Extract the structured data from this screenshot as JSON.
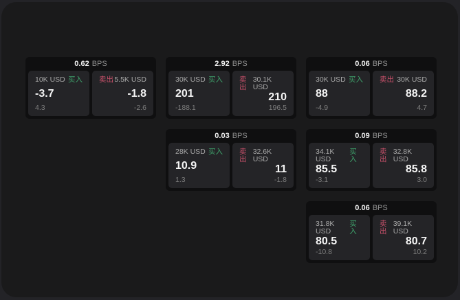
{
  "labels": {
    "buy": "买入",
    "sell": "卖出",
    "bps_unit": "BPS"
  },
  "theme": {
    "backdrop": "#232327",
    "window_bg": "#1a1a1b",
    "card_bg": "#0f0f10",
    "panel_bg": "#242427",
    "buy_green": "#3fa36c",
    "sell_red": "#c9516b",
    "value_white": "#f5f5f5",
    "label_gray": "#a9a9a9",
    "delta_gray": "#7d7d7d"
  },
  "cards": [
    {
      "bps": "0.62",
      "buy": {
        "amount": "10K USD",
        "value": "-3.7",
        "delta": "4.3"
      },
      "sell": {
        "amount": "5.5K USD",
        "value": "-1.8",
        "delta": "-2.6"
      }
    },
    {
      "bps": "2.92",
      "buy": {
        "amount": "30K USD",
        "value": "201",
        "delta": "-188.1"
      },
      "sell": {
        "amount": "30.1K USD",
        "value": "210",
        "delta": "196.5"
      }
    },
    {
      "bps": "0.06",
      "buy": {
        "amount": "30K USD",
        "value": "88",
        "delta": "-4.9"
      },
      "sell": {
        "amount": "30K USD",
        "value": "88.2",
        "delta": "4.7"
      }
    },
    {
      "bps": "0.03",
      "buy": {
        "amount": "28K USD",
        "value": "10.9",
        "delta": "1.3"
      },
      "sell": {
        "amount": "32.6K USD",
        "value": "11",
        "delta": "-1.8"
      }
    },
    {
      "bps": "0.09",
      "buy": {
        "amount": "34.1K USD",
        "value": "85.5",
        "delta": "-3.1"
      },
      "sell": {
        "amount": "32.8K USD",
        "value": "85.8",
        "delta": "3.0"
      }
    },
    {
      "bps": "0.06",
      "buy": {
        "amount": "31.8K USD",
        "value": "80.5",
        "delta": "-10.8"
      },
      "sell": {
        "amount": "39.1K USD",
        "value": "80.7",
        "delta": "10.2"
      }
    }
  ]
}
